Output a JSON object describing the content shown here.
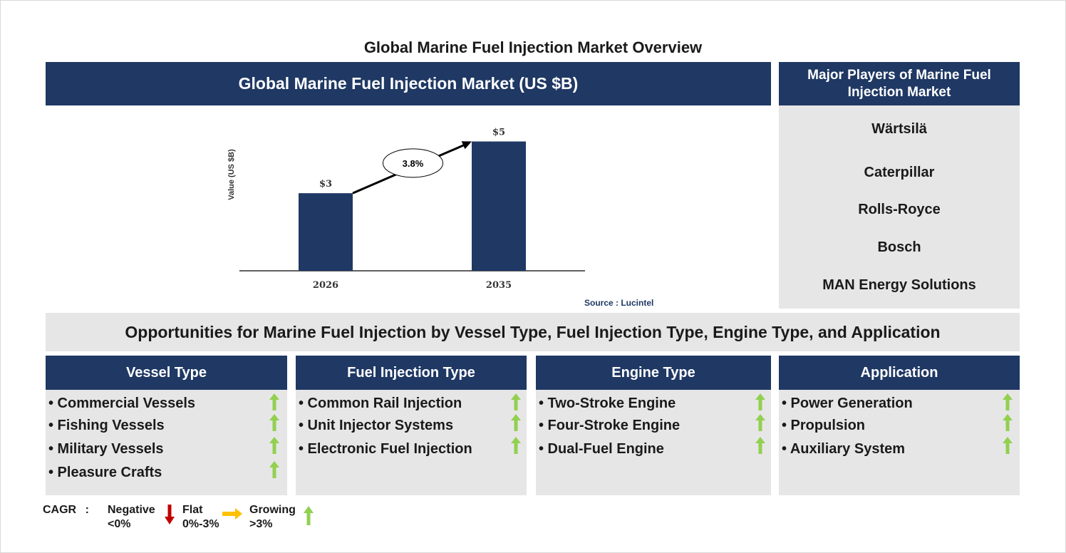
{
  "title": "Global Marine Fuel Injection Market Overview",
  "market_header": "Global Marine Fuel Injection Market (US $B)",
  "players": {
    "header": "Major Players of Marine Fuel Injection Market",
    "items": [
      "Wärtsilä",
      "Caterpillar",
      "Rolls-Royce",
      "Bosch",
      "MAN Energy Solutions"
    ]
  },
  "chart_data": {
    "type": "bar",
    "categories": [
      "2026",
      "2035"
    ],
    "values": [
      3,
      5
    ],
    "data_labels": [
      "$3",
      "$5"
    ],
    "ylabel": "Value (US $B)",
    "ylim": [
      0,
      5.4
    ],
    "cagr_label": "3.8%",
    "bar_color": "#1f3864",
    "grid": false
  },
  "source": "Source : Lucintel",
  "opportunities_title": "Opportunities for Marine Fuel Injection by Vessel Type, Fuel Injection Type, Engine Type, and Application",
  "segments": [
    {
      "title": "Vessel Type",
      "items": [
        "• Commercial Vessels",
        "• Fishing Vessels",
        "• Military Vessels",
        "• Pleasure Crafts"
      ]
    },
    {
      "title": "Fuel Injection Type",
      "items": [
        "• Common Rail Injection",
        "• Unit Injector Systems",
        "• Electronic Fuel Injection"
      ]
    },
    {
      "title": "Engine Type",
      "items": [
        "• Two-Stroke Engine",
        "• Four-Stroke Engine",
        "• Dual-Fuel Engine"
      ]
    },
    {
      "title": "Application",
      "items": [
        "• Power Generation",
        "• Propulsion",
        "• Auxiliary System"
      ]
    }
  ],
  "legend": {
    "cagr": "CAGR",
    "separator": ":",
    "negative": [
      "Negative",
      "<0%"
    ],
    "flat": [
      "Flat",
      "0%-3%"
    ],
    "growing": [
      "Growing",
      ">3%"
    ]
  },
  "colors": {
    "navy": "#1f3864",
    "grey": "#e7e6e6",
    "arrow_up": "#92d050",
    "arrow_down": "#c00000",
    "arrow_flat": "#ffc000"
  },
  "icons": {
    "trend": "up-arrow-icon",
    "negative": "down-arrow-icon",
    "flat": "right-arrow-icon",
    "growing": "up-arrow-icon"
  }
}
